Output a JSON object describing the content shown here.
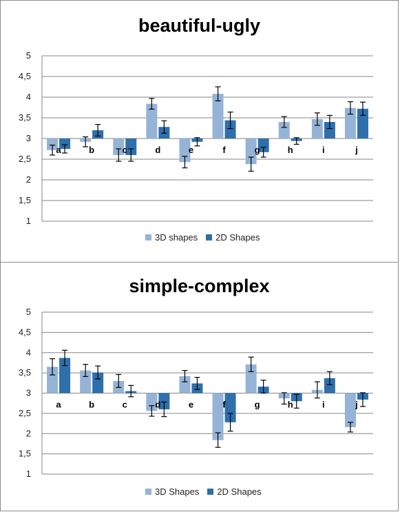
{
  "colors": {
    "series1": "#95b3d7",
    "series2": "#2e6fac",
    "grid": "#868686",
    "error": "#000000"
  },
  "chart_data": [
    {
      "type": "bar",
      "title": "beautiful-ugly",
      "categories": [
        "a",
        "b",
        "c",
        "d",
        "e",
        "f",
        "g",
        "h",
        "i",
        "j"
      ],
      "ylim": [
        1,
        5
      ],
      "baseline": 3,
      "yticks": [
        "1",
        "1,5",
        "2",
        "2,5",
        "3",
        "3,5",
        "4",
        "4,5",
        "5"
      ],
      "grid": true,
      "legend_position": "bottom",
      "series": [
        {
          "name": "3D shapes",
          "values": [
            2.72,
            2.92,
            2.6,
            3.84,
            2.43,
            4.08,
            2.38,
            3.4,
            3.47,
            3.74
          ],
          "errors": [
            0.12,
            0.12,
            0.15,
            0.13,
            0.14,
            0.17,
            0.17,
            0.13,
            0.15,
            0.15
          ]
        },
        {
          "name": "2D Shapes",
          "values": [
            2.75,
            3.2,
            2.6,
            3.28,
            2.92,
            3.44,
            2.67,
            2.94,
            3.4,
            3.72
          ],
          "errors": [
            0.1,
            0.14,
            0.15,
            0.15,
            0.1,
            0.2,
            0.12,
            0.08,
            0.16,
            0.16
          ]
        }
      ]
    },
    {
      "type": "bar",
      "title": "simple-complex",
      "categories": [
        "a",
        "b",
        "c",
        "d",
        "e",
        "f",
        "g",
        "h",
        "i",
        "j"
      ],
      "ylim": [
        1,
        5
      ],
      "baseline": 3,
      "yticks": [
        "1",
        "1,5",
        "2",
        "2,5",
        "3",
        "3,5",
        "4",
        "4,5",
        "5"
      ],
      "grid": true,
      "legend_position": "bottom",
      "series": [
        {
          "name": "3D Shapes",
          "values": [
            3.65,
            3.56,
            3.3,
            2.56,
            3.42,
            1.84,
            3.71,
            2.87,
            3.08,
            2.16
          ],
          "errors": [
            0.2,
            0.15,
            0.16,
            0.13,
            0.14,
            0.18,
            0.18,
            0.14,
            0.2,
            0.12
          ]
        },
        {
          "name": "2D Shapes",
          "values": [
            3.87,
            3.51,
            3.05,
            2.6,
            3.24,
            2.28,
            3.16,
            2.8,
            3.37,
            2.84
          ],
          "errors": [
            0.19,
            0.16,
            0.14,
            0.18,
            0.15,
            0.22,
            0.16,
            0.17,
            0.16,
            0.17
          ]
        }
      ]
    }
  ]
}
